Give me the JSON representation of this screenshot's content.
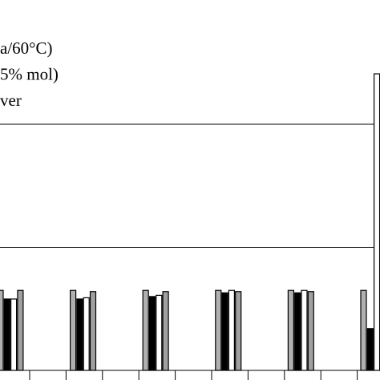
{
  "chart_data": {
    "type": "bar",
    "legend": [
      "a/60°C)",
      "5% mol)",
      "ver"
    ],
    "categories": [
      null,
      null,
      null,
      null,
      null,
      null
    ],
    "series": [
      {
        "color": "#b0b0b0",
        "values": [
          0.65,
          0.65,
          0.65,
          0.65,
          0.65,
          0.65
        ]
      },
      {
        "color": "#000000",
        "values": [
          0.58,
          0.58,
          0.6,
          0.63,
          0.63,
          0.34
        ]
      },
      {
        "color": "#ffffff",
        "values": [
          0.58,
          0.59,
          0.61,
          0.65,
          0.65,
          2.41
        ]
      },
      {
        "color": "#a0a0a0",
        "values": [
          0.65,
          0.64,
          0.64,
          0.64,
          0.64,
          null
        ]
      }
    ],
    "ylim": [
      0,
      3
    ],
    "gridlines": [
      1,
      2
    ],
    "grid": true
  }
}
